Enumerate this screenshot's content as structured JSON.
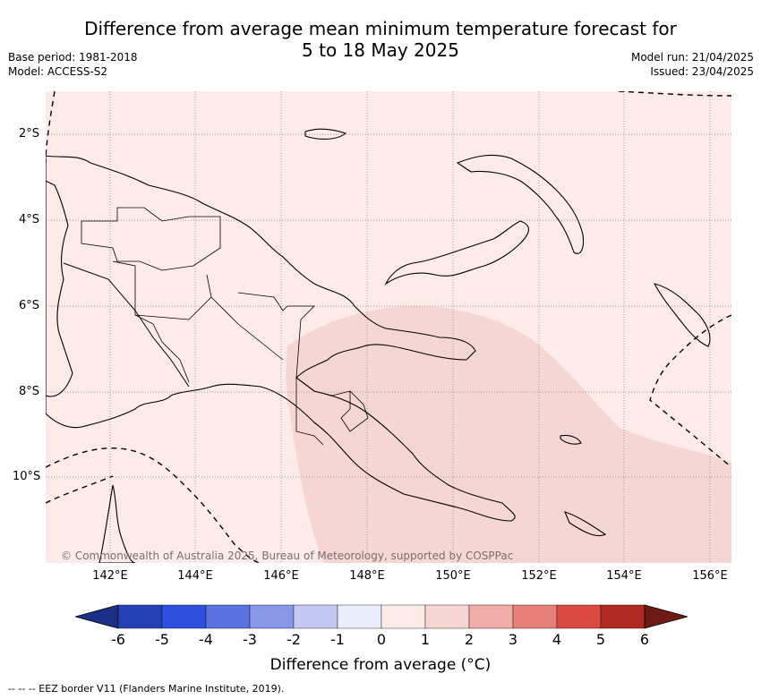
{
  "title": {
    "line1": "Difference from average mean minimum temperature forecast for",
    "line2": "5 to 18 May 2025"
  },
  "meta": {
    "base_period": "Base period: 1981-2018",
    "model": "Model: ACCESS-S2",
    "model_run": "Model run: 21/04/2025",
    "issued": "Issued: 23/04/2025"
  },
  "map": {
    "background_color": "#fcebe9",
    "anomaly_region_color": "#f6d6d2",
    "land_outline_color": "#000000",
    "longitude_ticks": [
      "142°E",
      "144°E",
      "146°E",
      "148°E",
      "150°E",
      "152°E",
      "154°E",
      "156°E"
    ],
    "latitude_ticks": [
      "2°S",
      "4°S",
      "6°S",
      "8°S",
      "10°S"
    ],
    "copyright": "© Commonwealth of Australia 2025, Bureau of Meteorology, supported by COSPPac"
  },
  "colorbar": {
    "title": "Difference from average (°C)",
    "tick_labels": [
      "-6",
      "-5",
      "-4",
      "-3",
      "-2",
      "-1",
      "0",
      "1",
      "2",
      "3",
      "4",
      "5",
      "6"
    ],
    "colors": [
      "#1b2f86",
      "#2340b4",
      "#2f4fde",
      "#5b72e3",
      "#8897ea",
      "#c3c9f3",
      "#eaedfb",
      "#fcebe9",
      "#f6d6d2",
      "#f0aca6",
      "#e8807a",
      "#db4a40",
      "#b02a22",
      "#6f1a14"
    ]
  },
  "legend_note": "--  --  -- EEZ border V11 (Flanders Marine Institute, 2019)."
}
